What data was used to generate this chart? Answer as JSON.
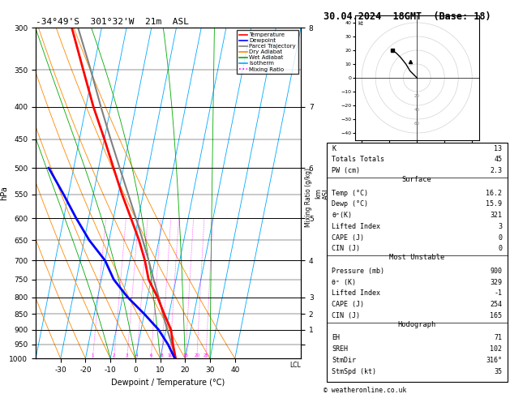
{
  "title_left": "-34°49'S  301°32'W  21m  ASL",
  "title_right": "30.04.2024  18GMT  (Base: 18)",
  "xlabel": "Dewpoint / Temperature (°C)",
  "ylabel_left": "hPa",
  "pressure_levels": [
    300,
    350,
    400,
    450,
    500,
    550,
    600,
    650,
    700,
    750,
    800,
    850,
    900,
    950,
    1000
  ],
  "mixing_ratio_lines": [
    1,
    2,
    3,
    4,
    6,
    8,
    10,
    15,
    20,
    25
  ],
  "color_temp": "#ff0000",
  "color_dewp": "#0000ff",
  "color_parcel": "#808080",
  "color_dry_adiabat": "#ff8800",
  "color_wet_adiabat": "#00aa00",
  "color_isotherm": "#00aaff",
  "color_mixing": "#ff00ff",
  "legend_items": [
    [
      "Temperature",
      "#ff0000",
      "-"
    ],
    [
      "Dewpoint",
      "#0000ff",
      "-"
    ],
    [
      "Parcel Trajectory",
      "#808080",
      "-"
    ],
    [
      "Dry Adiabat",
      "#ff8800",
      "-"
    ],
    [
      "Wet Adiabat",
      "#00aa00",
      "-"
    ],
    [
      "Isotherm",
      "#00aaff",
      "-"
    ],
    [
      "Mixing Ratio",
      "#ff00ff",
      ":"
    ]
  ],
  "sounding_temp": {
    "pressure": [
      1000,
      950,
      900,
      850,
      800,
      750,
      700,
      650,
      600,
      550,
      500,
      450,
      400,
      350,
      300
    ],
    "temp": [
      16.2,
      14.0,
      12.0,
      8.0,
      4.0,
      -1.0,
      -4.0,
      -8.0,
      -13.0,
      -18.5,
      -24.0,
      -30.0,
      -37.0,
      -44.0,
      -52.0
    ]
  },
  "sounding_dewp": {
    "pressure": [
      1000,
      950,
      900,
      850,
      800,
      750,
      700,
      650,
      600,
      550,
      500
    ],
    "temp": [
      15.9,
      12.0,
      7.0,
      0.0,
      -8.0,
      -15.0,
      -20.0,
      -28.0,
      -35.0,
      -42.0,
      -50.0
    ]
  },
  "parcel_trajectory": {
    "pressure": [
      1000,
      950,
      900,
      850,
      800,
      750,
      700,
      650,
      600,
      550,
      500,
      450,
      400,
      350,
      300
    ],
    "temp": [
      16.2,
      13.5,
      10.5,
      7.5,
      4.5,
      1.0,
      -2.5,
      -6.5,
      -11.0,
      -16.0,
      -21.5,
      -27.5,
      -34.0,
      -41.0,
      -49.5
    ]
  },
  "hodo_winds": {
    "u": [
      0,
      -5,
      -8,
      -12,
      -15,
      -18
    ],
    "v": [
      0,
      5,
      10,
      15,
      18,
      20
    ]
  },
  "hodo_storm": [
    -5,
    12
  ],
  "stats_lines": [
    [
      "K",
      "13"
    ],
    [
      "Totals Totals",
      "45"
    ],
    [
      "PW (cm)",
      "2.3"
    ],
    [
      "__Surface__",
      ""
    ],
    [
      "Temp (°C)",
      "16.2"
    ],
    [
      "Dewp (°C)",
      "15.9"
    ],
    [
      "θᵉ(K)",
      "321"
    ],
    [
      "Lifted Index",
      "3"
    ],
    [
      "CAPE (J)",
      "0"
    ],
    [
      "CIN (J)",
      "0"
    ],
    [
      "__Most Unstable__",
      ""
    ],
    [
      "Pressure (mb)",
      "900"
    ],
    [
      "θᵉ (K)",
      "329"
    ],
    [
      "Lifted Index",
      "-1"
    ],
    [
      "CAPE (J)",
      "254"
    ],
    [
      "CIN (J)",
      "165"
    ],
    [
      "__Hodograph__",
      ""
    ],
    [
      "EH",
      "71"
    ],
    [
      "SREH",
      "102"
    ],
    [
      "StmDir",
      "316°"
    ],
    [
      "StmSpd (kt)",
      "35"
    ]
  ]
}
